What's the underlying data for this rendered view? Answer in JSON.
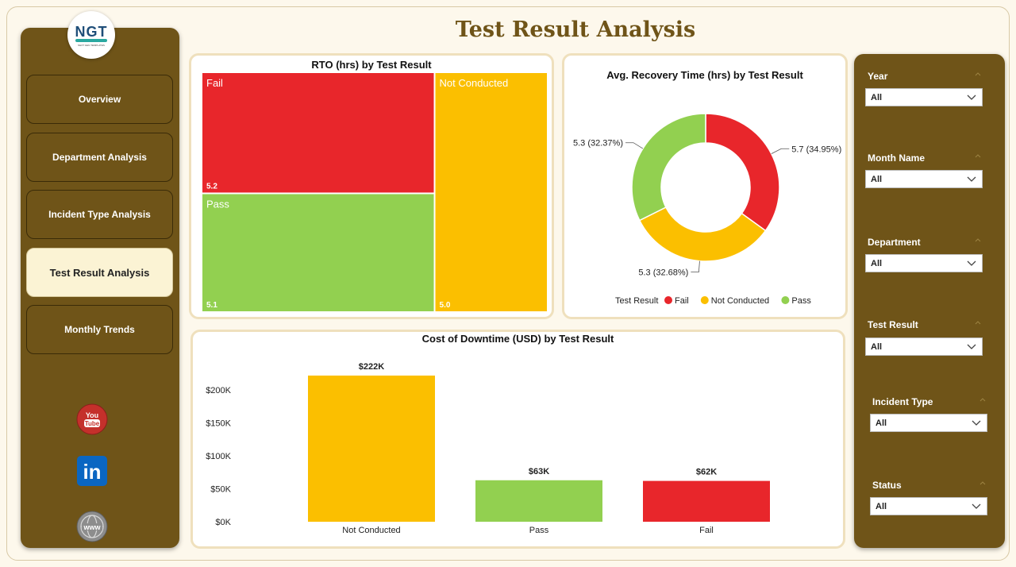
{
  "page": {
    "title": "Test Result Analysis"
  },
  "logo": {
    "text": "NGT",
    "subtext": "NEXT GEN TEMPLATES"
  },
  "nav": {
    "items": [
      {
        "label": "Overview"
      },
      {
        "label": "Department Analysis"
      },
      {
        "label": "Incident Type Analysis"
      },
      {
        "label": "Test Result Analysis"
      },
      {
        "label": "Monthly Trends"
      }
    ]
  },
  "social": {
    "youtube": {
      "label": "You",
      "label2": "Tube",
      "color": "#c4302b"
    },
    "linkedin": {
      "label": "in",
      "color": "#0a66c2"
    },
    "web": {
      "label": "www"
    }
  },
  "colors": {
    "fail": "#e8262b",
    "not_conducted": "#fbbf00",
    "pass": "#92d050",
    "brand": "#6f5418"
  },
  "chart_data": [
    {
      "id": "treemap",
      "type": "treemap",
      "title": "RTO (hrs) by Test Result",
      "items": [
        {
          "name": "Fail",
          "value": 5.2,
          "label": "5.2",
          "color": "#e8262b"
        },
        {
          "name": "Pass",
          "value": 5.1,
          "label": "5.1",
          "color": "#92d050"
        },
        {
          "name": "Not Conducted",
          "value": 5.0,
          "label": "5.0",
          "color": "#fbbf00"
        }
      ]
    },
    {
      "id": "donut",
      "type": "pie",
      "title": "Avg. Recovery Time (hrs) by Test Result",
      "legend_title": "Test Result",
      "slices": [
        {
          "name": "Fail",
          "value": 5.7,
          "percent": 34.95,
          "label": "5.7 (34.95%)",
          "color": "#e8262b"
        },
        {
          "name": "Not Conducted",
          "value": 5.3,
          "percent": 32.68,
          "label": "5.3 (32.68%)",
          "color": "#fbbf00"
        },
        {
          "name": "Pass",
          "value": 5.3,
          "percent": 32.37,
          "label": "5.3 (32.37%)",
          "color": "#92d050"
        }
      ]
    },
    {
      "id": "bar",
      "type": "bar",
      "title": "Cost of Downtime (USD) by Test Result",
      "categories": [
        "Not Conducted",
        "Pass",
        "Fail"
      ],
      "values": [
        222000,
        63000,
        62000
      ],
      "value_labels": [
        "$222K",
        "$63K",
        "$62K"
      ],
      "colors": [
        "#fbbf00",
        "#92d050",
        "#e8262b"
      ],
      "yticks": [
        0,
        50000,
        100000,
        150000,
        200000
      ],
      "ytick_labels": [
        "$0K",
        "$50K",
        "$100K",
        "$150K",
        "$200K"
      ],
      "ylim": [
        0,
        240000
      ]
    }
  ],
  "filters": [
    {
      "label": "Year",
      "value": "All"
    },
    {
      "label": "Month Name",
      "value": "All"
    },
    {
      "label": "Department",
      "value": "All"
    },
    {
      "label": "Test Result",
      "value": "All"
    },
    {
      "label": "Incident Type",
      "value": "All"
    },
    {
      "label": "Status",
      "value": "All"
    }
  ]
}
